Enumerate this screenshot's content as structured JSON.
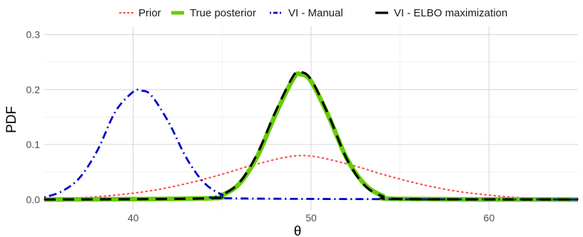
{
  "chart_data": {
    "type": "line",
    "xlabel": "θ",
    "ylabel": "PDF",
    "xlim": [
      35,
      65
    ],
    "ylim": [
      0,
      0.3
    ],
    "x_ticks": [
      40,
      50,
      60
    ],
    "y_ticks": [
      0.0,
      0.1,
      0.2,
      0.3
    ],
    "x_tick_labels": [
      "40",
      "50",
      "60"
    ],
    "y_tick_labels": [
      "0.0",
      "0.1",
      "0.2",
      "0.3"
    ],
    "grid": true,
    "legend_position": "top",
    "series": [
      {
        "name": "Prior",
        "color": "#ff4d4d",
        "line_style": "dotted",
        "x": [
          35,
          37,
          39,
          41,
          43,
          45,
          47,
          49.5,
          52,
          54,
          56,
          58,
          60,
          62,
          65
        ],
        "y": [
          0.001,
          0.003,
          0.008,
          0.016,
          0.029,
          0.046,
          0.065,
          0.08,
          0.065,
          0.046,
          0.029,
          0.016,
          0.008,
          0.003,
          0.001
        ]
      },
      {
        "name": "True posterior",
        "color": "#66cc00",
        "line_style": "solid-thick",
        "x": [
          35,
          44,
          45,
          46,
          47,
          48,
          49,
          49.4,
          50,
          51,
          52,
          53,
          54,
          55,
          65
        ],
        "y": [
          0,
          0.002,
          0.008,
          0.03,
          0.08,
          0.155,
          0.22,
          0.228,
          0.215,
          0.15,
          0.075,
          0.028,
          0.007,
          0.001,
          0
        ]
      },
      {
        "name": "VI - Manual",
        "color": "#0000cc",
        "line_style": "dotdash",
        "x": [
          35,
          36,
          37,
          38,
          39,
          40,
          40.4,
          41,
          42,
          43,
          44,
          45,
          46,
          65
        ],
        "y": [
          0.004,
          0.015,
          0.04,
          0.09,
          0.16,
          0.196,
          0.198,
          0.19,
          0.14,
          0.075,
          0.03,
          0.009,
          0.002,
          0
        ]
      },
      {
        "name": "VI - ELBO maximization",
        "color": "#000000",
        "line_style": "dashed",
        "x": [
          35,
          44,
          45,
          46,
          47,
          48,
          49,
          49.4,
          50,
          51,
          52,
          53,
          54,
          55,
          65
        ],
        "y": [
          0,
          0.002,
          0.009,
          0.032,
          0.085,
          0.16,
          0.225,
          0.232,
          0.218,
          0.152,
          0.074,
          0.026,
          0.006,
          0.001,
          0
        ]
      }
    ]
  }
}
